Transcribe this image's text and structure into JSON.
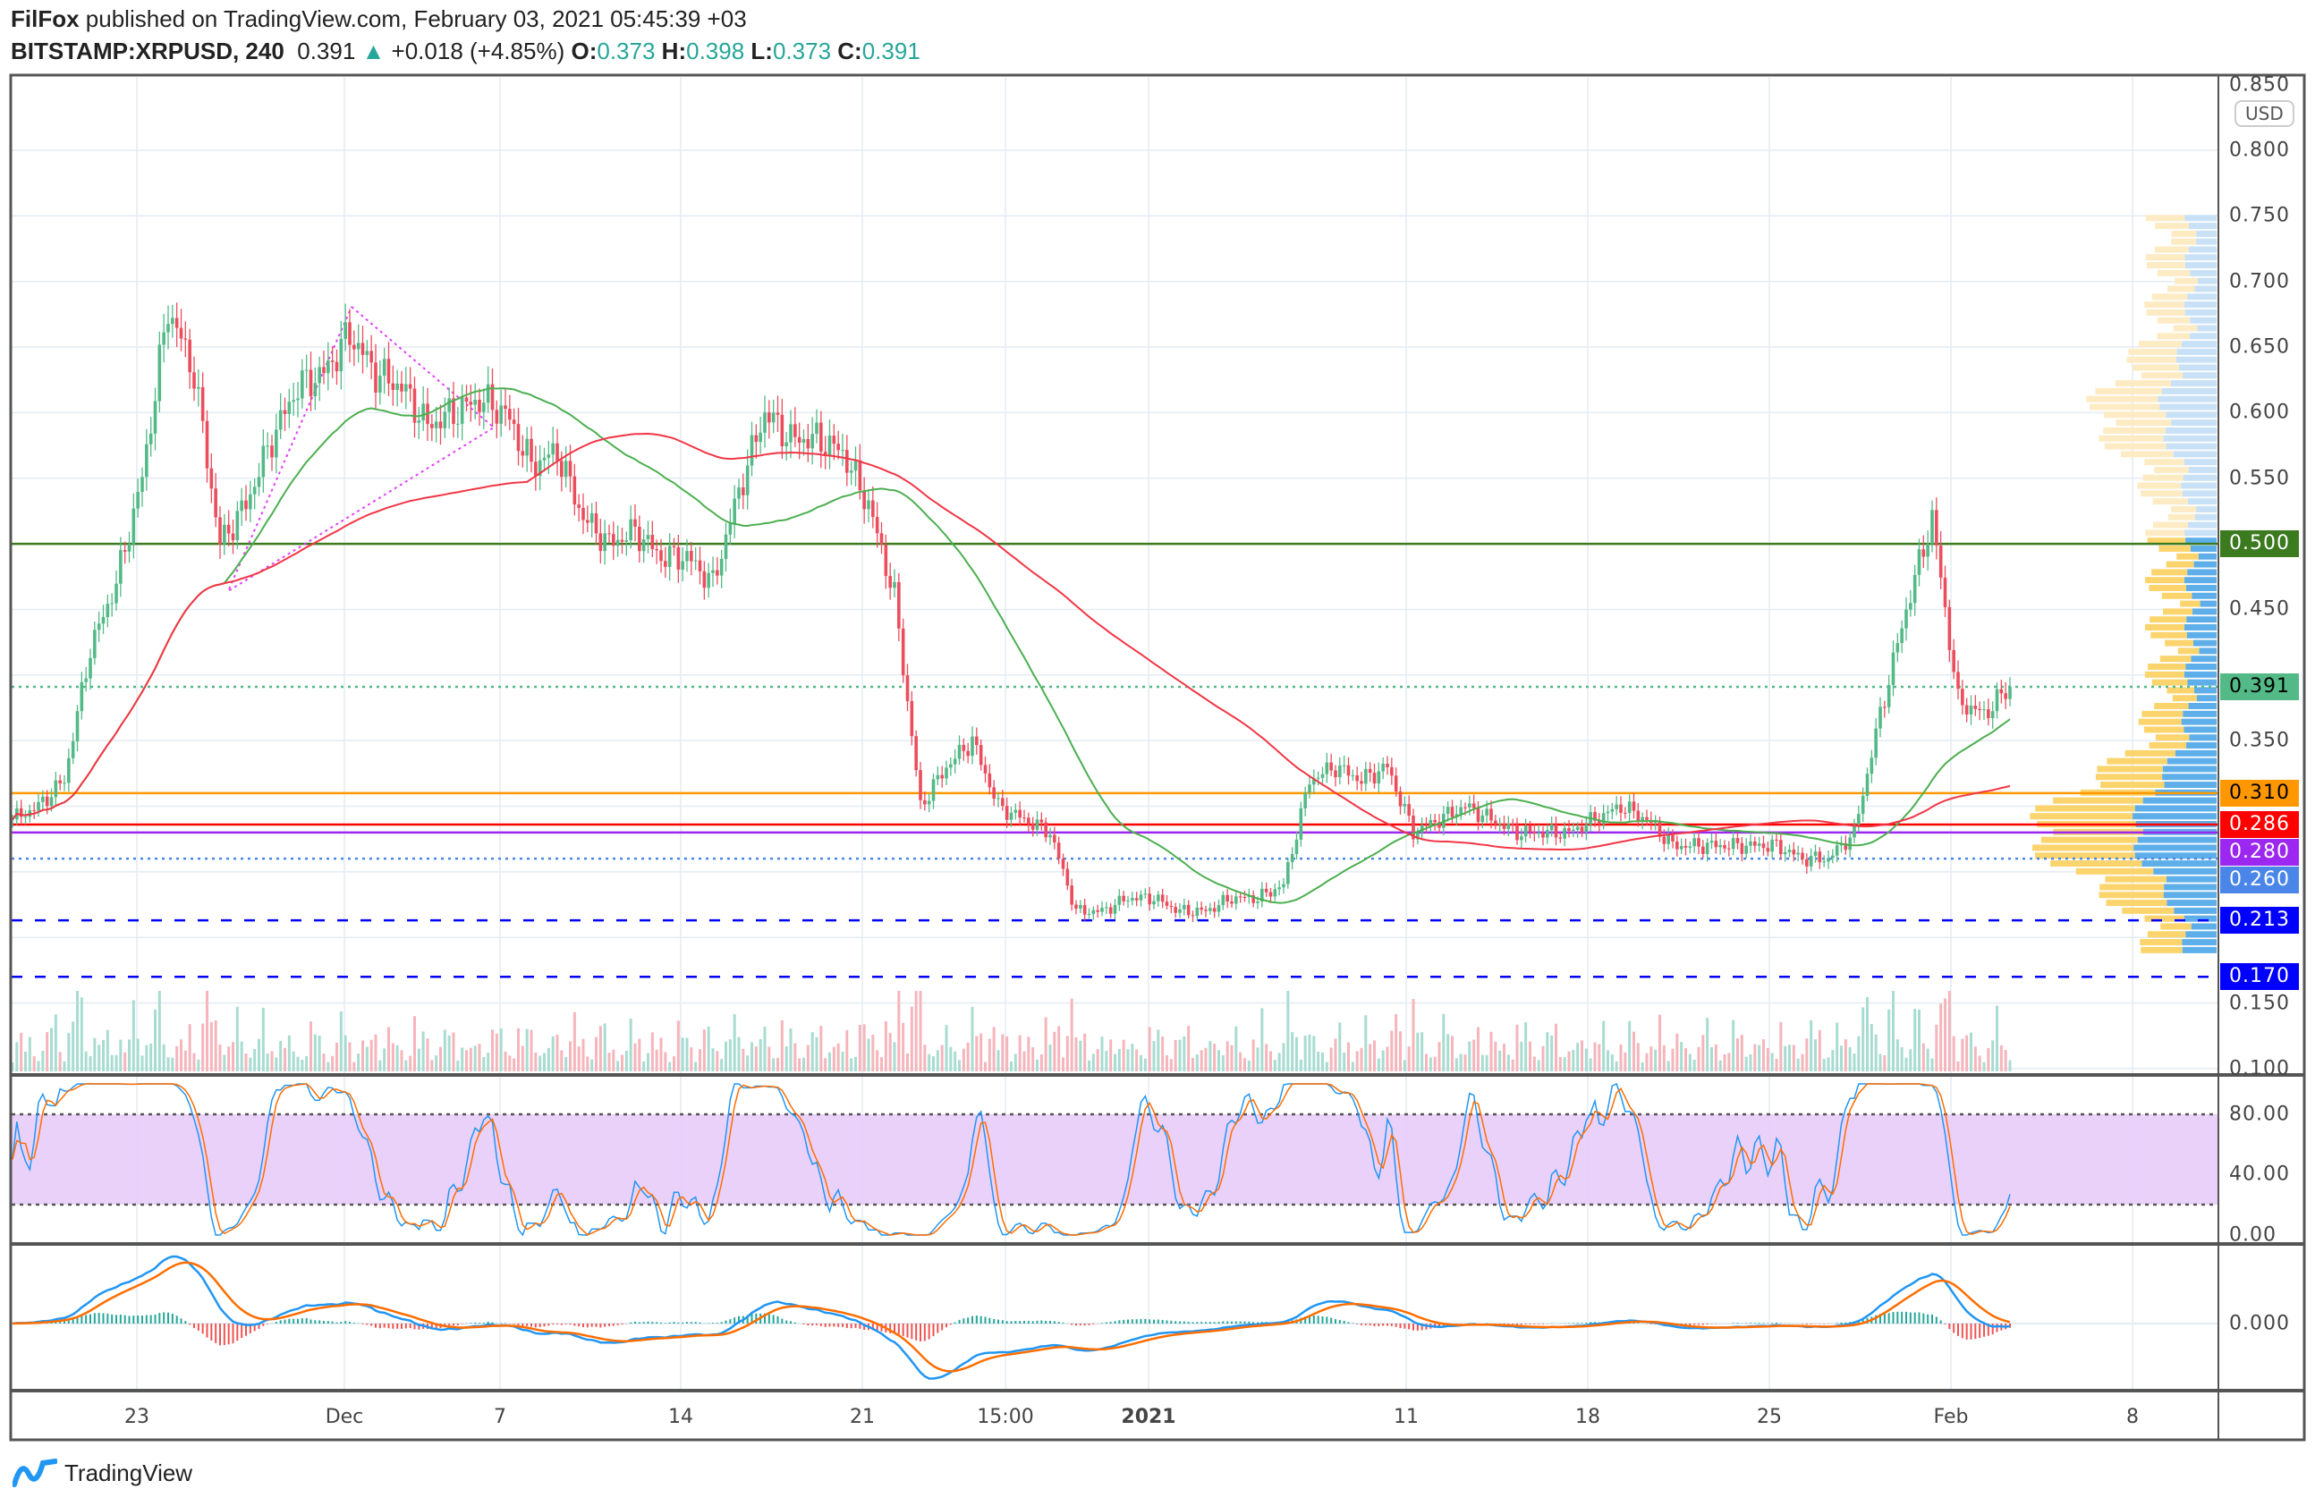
{
  "header": {
    "author": "FilFox",
    "published_text": "published on TradingView.com, February 03, 2021 05:45:39 +03",
    "symbol": "BITSTAMP:XRPUSD, 240",
    "last": "0.391",
    "change": "+0.018 (+4.85%)",
    "o_label": "O:",
    "o": "0.373",
    "h_label": "H:",
    "h": "0.398",
    "l_label": "L:",
    "l": "0.373",
    "c_label": "C:",
    "c": "0.391"
  },
  "currency": "USD",
  "price_axis": [
    "0.850",
    "0.800",
    "0.750",
    "0.700",
    "0.650",
    "0.600",
    "0.550",
    "0.450",
    "0.350",
    "0.150",
    "0.100"
  ],
  "levels": [
    {
      "label": "0.500",
      "value": 0.5,
      "color": "#3b7a1e",
      "text": "#ffffff",
      "style": "solid"
    },
    {
      "label": "0.391",
      "value": 0.391,
      "color": "#53b987",
      "text": "#000000",
      "style": "dotted"
    },
    {
      "label": "0.310",
      "value": 0.31,
      "color": "#ff9800",
      "text": "#000000",
      "style": "solid"
    },
    {
      "label": "0.286",
      "value": 0.286,
      "color": "#ff0000",
      "text": "#ffffff",
      "style": "solid"
    },
    {
      "label": "0.280",
      "value": 0.28,
      "color": "#9c27f0",
      "text": "#ffffff",
      "style": "solid"
    },
    {
      "label": "0.260",
      "value": 0.26,
      "color": "#4a86e8",
      "text": "#ffffff",
      "style": "dotted"
    },
    {
      "label": "0.213",
      "value": 0.213,
      "color": "#0000ff",
      "text": "#ffffff",
      "style": "dashed"
    },
    {
      "label": "0.170",
      "value": 0.17,
      "color": "#0000ff",
      "text": "#ffffff",
      "style": "dashed"
    }
  ],
  "x_axis": [
    "23",
    "Dec",
    "7",
    "14",
    "21",
    "15:00",
    "2021",
    "11",
    "18",
    "25",
    "Feb",
    "8"
  ],
  "stoch_axis": [
    "80.00",
    "40.00",
    "0.00"
  ],
  "macd_axis": [
    "0.000"
  ],
  "branding": "TradingView",
  "colors": {
    "up": "#53b987",
    "down": "#eb4d5c",
    "ma_fast": "#4caf50",
    "ma_slow": "#f23645",
    "stoch_k": "#2196f3",
    "stoch_d": "#ff6d00",
    "band": "#e1c4f7"
  },
  "chart_data": {
    "type": "candlestick",
    "title": "BITSTAMP:XRPUSD, 240",
    "interval": "4h",
    "start_date": "2020-11-18",
    "ylabel": "USD",
    "ylim": [
      0.1,
      0.85
    ],
    "daily_close": [
      0.29,
      0.3,
      0.32,
      0.42,
      0.47,
      0.55,
      0.68,
      0.63,
      0.5,
      0.53,
      0.58,
      0.62,
      0.63,
      0.66,
      0.63,
      0.62,
      0.59,
      0.6,
      0.61,
      0.6,
      0.56,
      0.57,
      0.52,
      0.5,
      0.51,
      0.49,
      0.49,
      0.47,
      0.54,
      0.6,
      0.58,
      0.58,
      0.57,
      0.53,
      0.46,
      0.3,
      0.33,
      0.35,
      0.3,
      0.29,
      0.28,
      0.22,
      0.22,
      0.23,
      0.23,
      0.22,
      0.22,
      0.23,
      0.23,
      0.24,
      0.32,
      0.33,
      0.32,
      0.33,
      0.28,
      0.29,
      0.3,
      0.29,
      0.28,
      0.28,
      0.28,
      0.29,
      0.3,
      0.29,
      0.27,
      0.27,
      0.27,
      0.27,
      0.27,
      0.26,
      0.26,
      0.28,
      0.37,
      0.45,
      0.52,
      0.38,
      0.37,
      0.391
    ],
    "indicators": [
      "Volume",
      "SMA",
      "Stochastic RSI",
      "MACD",
      "Volume Profile"
    ]
  }
}
